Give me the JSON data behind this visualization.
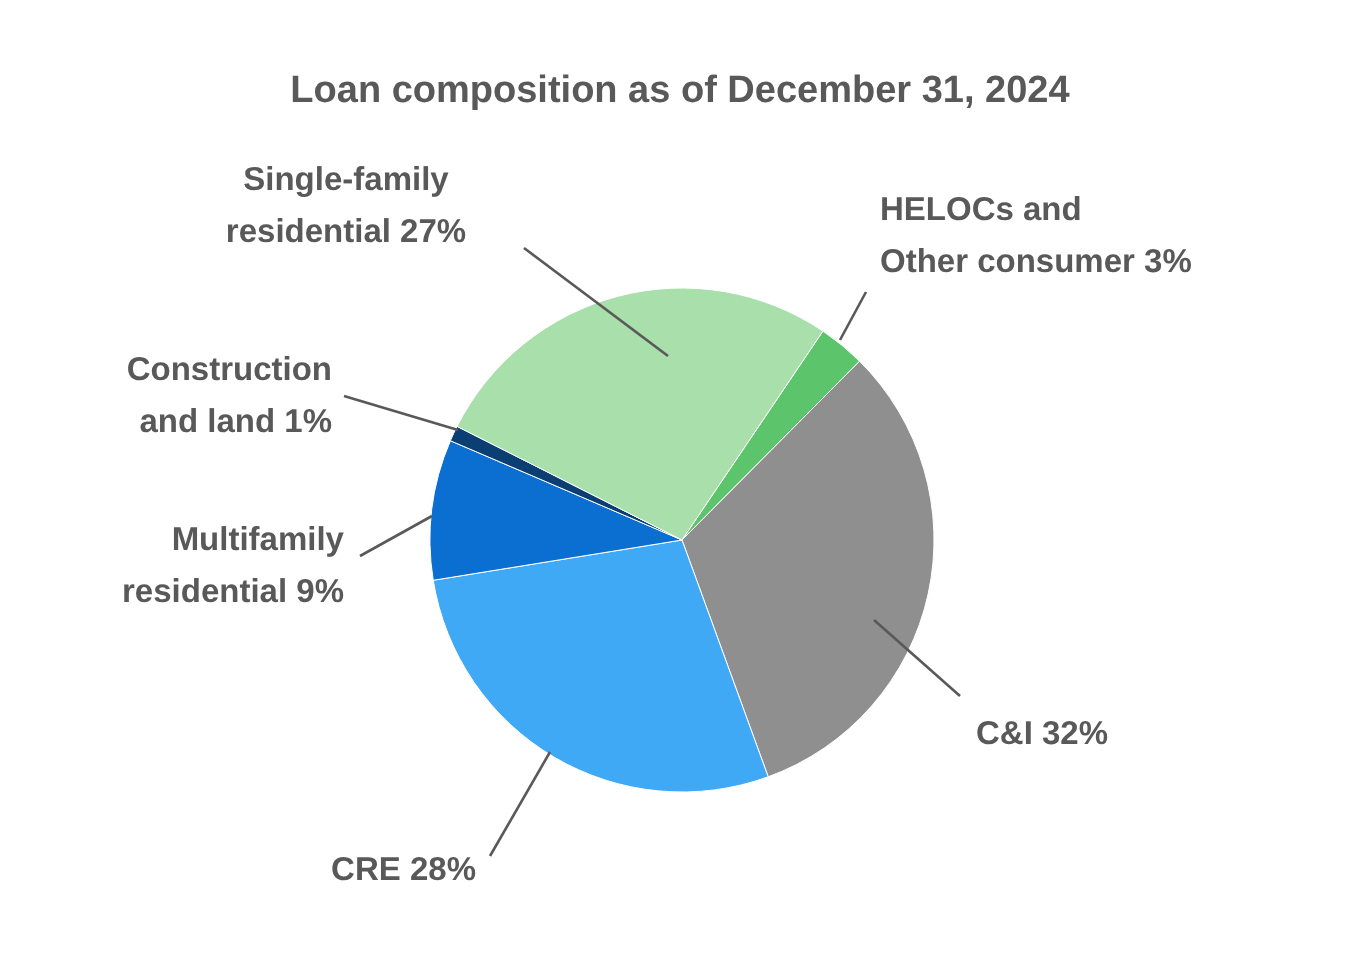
{
  "chart_data": {
    "type": "pie",
    "title": "Loan composition as of December 31, 2024",
    "categories": [
      "HELOCs and Other consumer",
      "C&I",
      "CRE",
      "Multifamily residential",
      "Construction and land",
      "Single-family residential"
    ],
    "values": [
      3,
      32,
      28,
      9,
      1,
      27
    ],
    "colors": [
      "#5cc46a",
      "#8f8f8f",
      "#3fa9f5",
      "#0a6fd1",
      "#0b3f73",
      "#a9dfab"
    ],
    "value_labels": [
      "3%",
      "32%",
      "28%",
      "9%",
      "1%",
      "27%"
    ]
  }
}
